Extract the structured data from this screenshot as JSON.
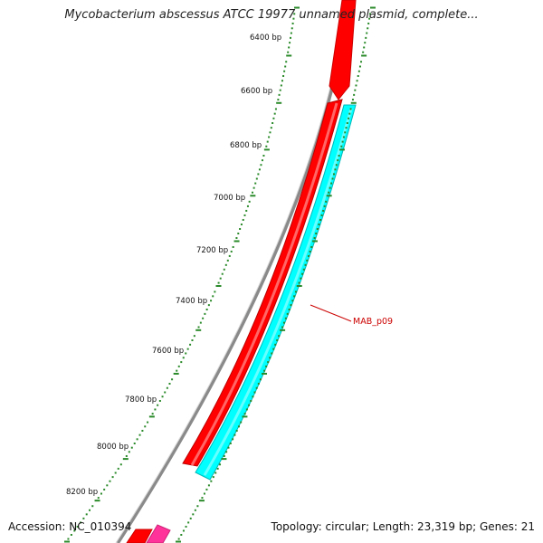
{
  "title": "Mycobacterium abscessus ATCC 19977 unnamed plasmid, complete...",
  "accession": "Accession: NC_010394",
  "summary": "Topology: circular; Length: 23,319 bp; Genes: 21",
  "ticks": [
    "6400 bp",
    "6600 bp",
    "6800 bp",
    "7000 bp",
    "7200 bp",
    "7400 bp",
    "7600 bp",
    "7800 bp",
    "8000 bp",
    "8200 bp"
  ],
  "gene_label": "MAB_p09",
  "colors": {
    "backbone": "#8a8a8a",
    "cds_forward": "#ff0000",
    "cds_reverse": "#00ffff",
    "misc_feature": "#ff3399",
    "tick": "#2a8a2a",
    "label_line": "#cc0000"
  }
}
